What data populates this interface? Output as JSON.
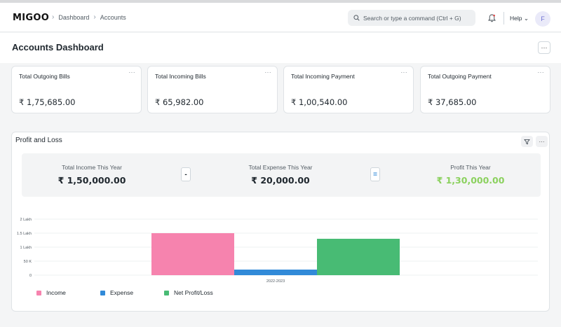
{
  "app": {
    "logo_text": "MIGOO"
  },
  "breadcrumbs": [
    "Dashboard",
    "Accounts"
  ],
  "search": {
    "placeholder": "Search or type a command (Ctrl + G)"
  },
  "navbar": {
    "help_label": "Help",
    "avatar_initial": "F"
  },
  "page": {
    "title": "Accounts Dashboard",
    "menu_label": "···"
  },
  "cards": [
    {
      "title": "Total Outgoing Bills",
      "value": "₹ 1,75,685.00",
      "menu": "···"
    },
    {
      "title": "Total Incoming Bills",
      "value": "₹ 65,982.00",
      "menu": "···"
    },
    {
      "title": "Total Incoming Payment",
      "value": "₹ 1,00,540.00",
      "menu": "···"
    },
    {
      "title": "Total Outgoing Payment",
      "value": "₹ 37,685.00",
      "menu": "···"
    }
  ],
  "profit_loss": {
    "title": "Profit and Loss",
    "menu": "···",
    "income": {
      "label": "Total Income This Year",
      "value": "₹ 1,50,000.00"
    },
    "minus": "-",
    "expense": {
      "label": "Total Expense This Year",
      "value": "₹ 20,000.00"
    },
    "equals": "=",
    "profit": {
      "label": "Profit This Year",
      "value": "₹ 1,30,000.00"
    }
  },
  "colors": {
    "income": "#f683ae",
    "expense": "#318ad8",
    "net": "#48bb74",
    "profit_text": "#8bd15e"
  },
  "chart_data": {
    "type": "bar",
    "categories": [
      "2022-2023"
    ],
    "series": [
      {
        "name": "Income",
        "values": [
          150000
        ]
      },
      {
        "name": "Expense",
        "values": [
          20000
        ]
      },
      {
        "name": "Net Profit/Loss",
        "values": [
          130000
        ]
      }
    ],
    "ylim": [
      0,
      200000
    ],
    "yticks": [
      {
        "value": 0,
        "label": "0"
      },
      {
        "value": 50000,
        "label": "50 K"
      },
      {
        "value": 100000,
        "label": "1 Lakh"
      },
      {
        "value": 150000,
        "label": "1.5 Lakh"
      },
      {
        "value": 200000,
        "label": "2 Lakh"
      }
    ],
    "legend_position": "bottom-left",
    "grid": true
  }
}
